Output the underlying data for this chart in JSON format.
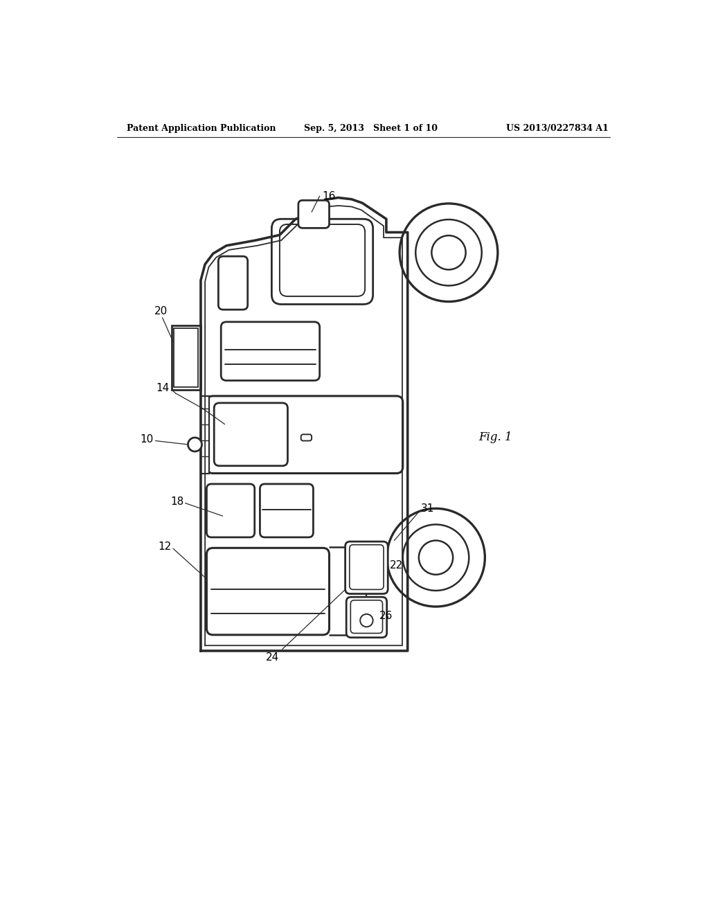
{
  "title_left": "Patent Application Publication",
  "title_mid": "Sep. 5, 2013   Sheet 1 of 10",
  "title_right": "US 2013/0227834 A1",
  "fig_label": "Fig. 1",
  "background_color": "#ffffff",
  "line_color": "#2a2a2a",
  "line_width": 2.0
}
